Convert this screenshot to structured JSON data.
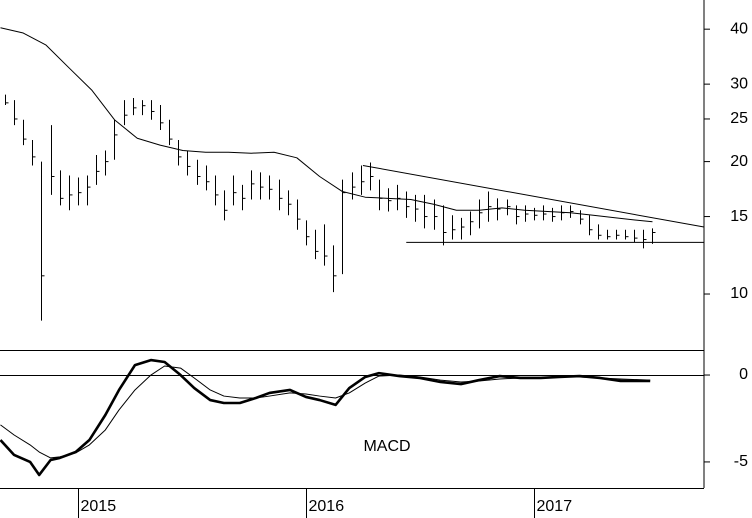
{
  "chart_data": [
    {
      "type": "hlc",
      "log_scale": true,
      "color": "#000000",
      "xlim": [
        2014.658,
        2017.746
      ],
      "ylim": [
        7.46,
        46.6
      ],
      "yticks": [
        10,
        15,
        20,
        25,
        30,
        40
      ],
      "x": [
        2014.68,
        2014.72,
        2014.76,
        2014.8,
        2014.84,
        2014.88,
        2014.92,
        2014.96,
        2015,
        2015.04,
        2015.08,
        2015.12,
        2015.16,
        2015.2,
        2015.24,
        2015.28,
        2015.32,
        2015.36,
        2015.4,
        2015.44,
        2015.48,
        2015.52,
        2015.56,
        2015.6,
        2015.64,
        2015.68,
        2015.72,
        2015.76,
        2015.8,
        2015.84,
        2015.88,
        2015.92,
        2015.96,
        2016,
        2016.04,
        2016.08,
        2016.12,
        2016.16,
        2016.2,
        2016.24,
        2016.28,
        2016.32,
        2016.36,
        2016.4,
        2016.44,
        2016.48,
        2016.52,
        2016.56,
        2016.6,
        2016.64,
        2016.68,
        2016.72,
        2016.76,
        2016.8,
        2016.84,
        2016.88,
        2016.92,
        2016.96,
        2017,
        2017.04,
        2017.08,
        2017.12,
        2017.16,
        2017.2,
        2017.24,
        2017.28,
        2017.32,
        2017.36,
        2017.4,
        2017.44,
        2017.48,
        2017.52
      ],
      "high": [
        28.4,
        27.6,
        24.9,
        22.4,
        20.0,
        24.2,
        19.1,
        18.6,
        18.4,
        18.6,
        20.7,
        21.2,
        24.9,
        27.6,
        27.9,
        27.6,
        27.6,
        26.9,
        24.9,
        22.4,
        21.2,
        20.2,
        19.6,
        18.6,
        17.2,
        18.6,
        17.7,
        19.1,
        18.9,
        18.6,
        18.2,
        17.2,
        16.4,
        14.7,
        14.0,
        14.4,
        12.9,
        18.2,
        18.9,
        19.6,
        19.9,
        18.2,
        17.4,
        17.7,
        17.1,
        16.8,
        16.8,
        16.4,
        15.9,
        15.1,
        14.9,
        15.4,
        16.4,
        17.1,
        16.5,
        16.4,
        15.9,
        15.9,
        15.7,
        15.9,
        15.7,
        15.9,
        15.9,
        15.5,
        15.1,
        14.4,
        14.0,
        14.0,
        14.0,
        14.0,
        14.0,
        14.1
      ],
      "low": [
        26.9,
        24.2,
        21.8,
        19.6,
        8.7,
        16.8,
        15.9,
        15.5,
        15.9,
        15.9,
        17.7,
        18.6,
        20.2,
        24.2,
        25.5,
        25.5,
        24.9,
        23.6,
        21.8,
        19.6,
        18.6,
        17.7,
        17.2,
        15.9,
        14.7,
        15.9,
        15.5,
        16.4,
        16.4,
        16.4,
        15.5,
        15.1,
        14.0,
        12.9,
        12.0,
        11.6,
        10.1,
        11.1,
        16.4,
        16.8,
        17.2,
        15.5,
        15.4,
        15.5,
        14.9,
        14.6,
        14.1,
        14.0,
        12.9,
        13.3,
        13.3,
        13.6,
        14.1,
        14.6,
        14.7,
        15.1,
        14.4,
        14.6,
        14.7,
        14.7,
        14.6,
        14.7,
        14.9,
        14.4,
        13.6,
        13.3,
        13.3,
        13.3,
        13.3,
        13.1,
        12.7,
        13.0
      ],
      "close": [
        27.2,
        25.0,
        22.5,
        20.5,
        11.0,
        18.5,
        16.5,
        16.8,
        17.0,
        17.5,
        19.0,
        20.0,
        23.0,
        25.5,
        26.5,
        26.8,
        26.0,
        24.5,
        22.5,
        20.5,
        19.5,
        18.5,
        18.0,
        16.8,
        15.5,
        17.0,
        16.5,
        17.8,
        17.5,
        17.3,
        16.5,
        16.0,
        14.8,
        13.5,
        12.5,
        12.2,
        11.0,
        17.0,
        17.5,
        18.0,
        18.5,
        16.5,
        16.3,
        16.5,
        15.8,
        15.6,
        15.0,
        15.0,
        13.8,
        14.0,
        14.2,
        14.6,
        15.3,
        15.8,
        15.6,
        15.8,
        15.0,
        15.2,
        15.1,
        15.2,
        15.0,
        15.3,
        15.4,
        14.8,
        14.0,
        13.6,
        13.5,
        13.6,
        13.5,
        13.4,
        13.3,
        13.8
      ],
      "overlays": [
        {
          "color": "#000000",
          "x": [
            2014.66,
            2014.76,
            2014.86,
            2014.96,
            2015.06,
            2015.16,
            2015.26,
            2015.36,
            2015.46,
            2015.56,
            2015.66,
            2015.76,
            2015.86,
            2015.96,
            2016.06,
            2016.16,
            2016.26,
            2016.36,
            2016.46,
            2016.56,
            2016.66,
            2016.76,
            2016.86,
            2016.96,
            2017.06,
            2017.16,
            2017.26,
            2017.36,
            2017.46,
            2017.52
          ],
          "values": [
            40.3,
            39.2,
            36.8,
            32.7,
            29.1,
            24.9,
            22.6,
            21.8,
            21.2,
            21.0,
            21.0,
            20.9,
            21.0,
            20.4,
            18.5,
            17.1,
            16.6,
            16.5,
            16.4,
            16.0,
            15.5,
            15.5,
            15.7,
            15.5,
            15.4,
            15.3,
            15.1,
            14.9,
            14.7,
            14.6
          ]
        }
      ],
      "lines": [
        {
          "x": [
            2016.25,
            2017.746
          ],
          "values": [
            19.6,
            14.2
          ]
        },
        {
          "x": [
            2016.44,
            2017.746
          ],
          "values": [
            13.1,
            13.1
          ]
        }
      ]
    },
    {
      "type": "line",
      "annotation": "MACD",
      "xlim": [
        2014.658,
        2017.746
      ],
      "ylim": [
        -6.5,
        1.44
      ],
      "xticks": [
        2015,
        2016,
        2017
      ],
      "yticks": [
        0,
        -5
      ],
      "x": [
        2014.66,
        2014.72,
        2014.79,
        2014.83,
        2014.88,
        2014.92,
        2014.99,
        2015.05,
        2015.12,
        2015.18,
        2015.25,
        2015.32,
        2015.38,
        2015.45,
        2015.51,
        2015.58,
        2015.64,
        2015.71,
        2015.78,
        2015.84,
        2015.93,
        2016.0,
        2016.06,
        2016.13,
        2016.19,
        2016.26,
        2016.32,
        2016.41,
        2016.5,
        2016.59,
        2016.68,
        2016.76,
        2016.85,
        2016.94,
        2017.03,
        2017.11,
        2017.2,
        2017.29,
        2017.38,
        2017.51
      ],
      "series": [
        {
          "color": "#000000",
          "width": 2.6,
          "values": [
            -3.74,
            -4.6,
            -5.0,
            -5.75,
            -4.89,
            -4.77,
            -4.43,
            -3.74,
            -2.3,
            -0.86,
            0.57,
            0.86,
            0.75,
            0,
            -0.75,
            -1.44,
            -1.61,
            -1.61,
            -1.32,
            -1.03,
            -0.86,
            -1.26,
            -1.44,
            -1.72,
            -0.75,
            -0.11,
            0.11,
            -0.06,
            -0.17,
            -0.4,
            -0.52,
            -0.29,
            -0.06,
            -0.17,
            -0.17,
            -0.11,
            -0.06,
            -0.17,
            -0.34,
            -0.34
          ]
        },
        {
          "color": "#000000",
          "width": 1,
          "values": [
            -2.87,
            -3.45,
            -4.02,
            -4.43,
            -4.77,
            -4.71,
            -4.48,
            -4.02,
            -3.16,
            -2.01,
            -0.86,
            0,
            0.52,
            0.4,
            -0.17,
            -0.86,
            -1.21,
            -1.32,
            -1.32,
            -1.21,
            -1.03,
            -1.09,
            -1.21,
            -1.32,
            -1.03,
            -0.46,
            -0.06,
            0,
            -0.11,
            -0.29,
            -0.4,
            -0.34,
            -0.23,
            -0.17,
            -0.17,
            -0.11,
            -0.11,
            -0.17,
            -0.23,
            -0.29
          ]
        }
      ]
    }
  ]
}
